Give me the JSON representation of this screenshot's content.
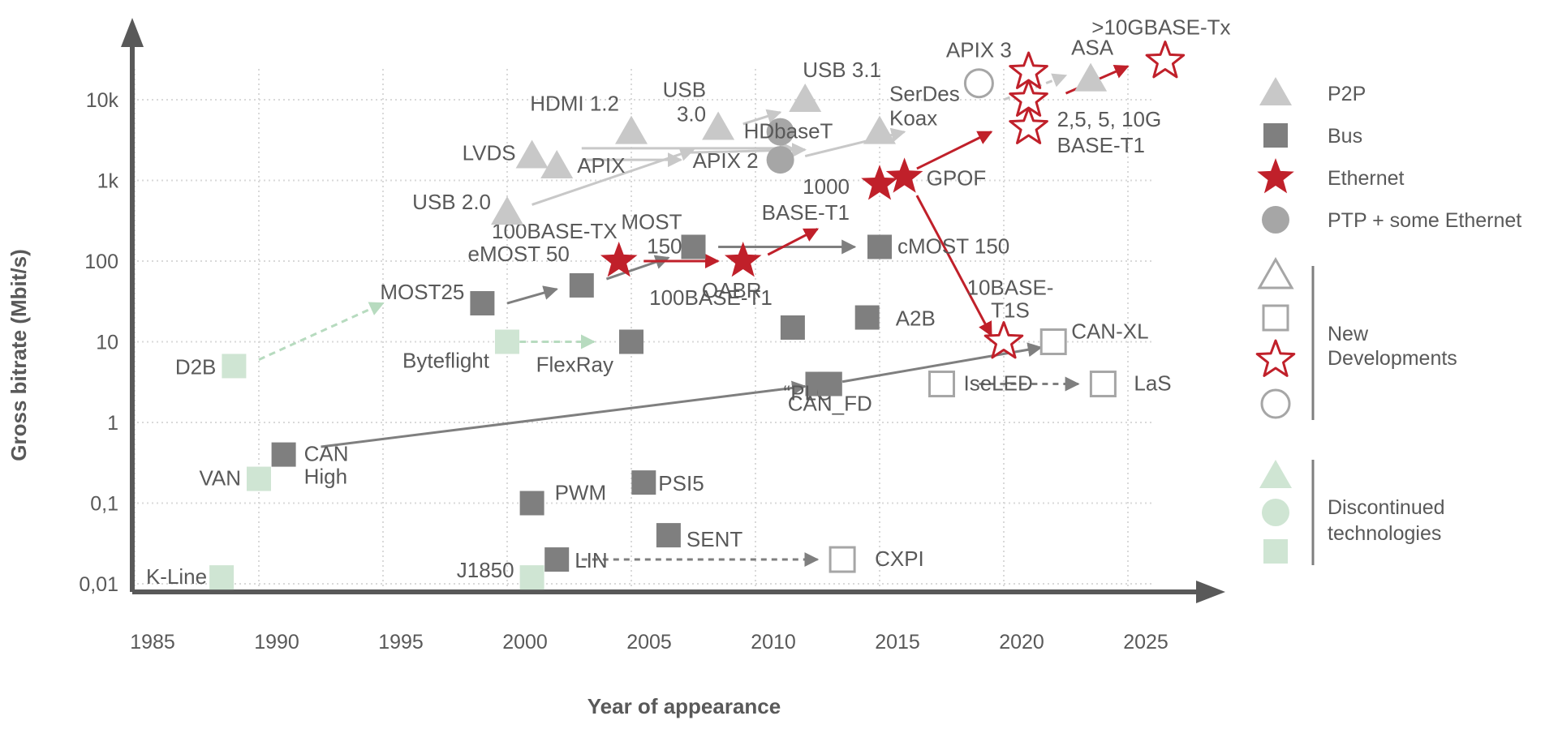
{
  "chart_data": {
    "type": "scatter",
    "xlabel": "Year of appearance",
    "ylabel": "Gross bitrate (Mbit/s)",
    "x_scale": "linear",
    "y_scale": "log",
    "xlim": [
      1985,
      2027
    ],
    "ylim": [
      0.01,
      30000
    ],
    "grid": true,
    "x_ticks": [
      "1985",
      "1990",
      "1995",
      "2000",
      "2005",
      "2010",
      "2015",
      "2020",
      "2025"
    ],
    "y_ticks": [
      {
        "value": 0.01,
        "label": "0,01"
      },
      {
        "value": 0.1,
        "label": "0,1"
      },
      {
        "value": 1,
        "label": "1"
      },
      {
        "value": 10,
        "label": "10"
      },
      {
        "value": 100,
        "label": "100"
      },
      {
        "value": 1000,
        "label": "1k"
      },
      {
        "value": 10000,
        "label": "10k"
      }
    ],
    "legend": {
      "placement": "right",
      "entries": [
        {
          "label": "P2P",
          "marker": "triangle",
          "style": "gray"
        },
        {
          "label": "Bus",
          "marker": "square",
          "style": "darkgray"
        },
        {
          "label": "Ethernet",
          "marker": "star",
          "style": "red"
        },
        {
          "label": "PTP + some Ethernet",
          "marker": "circle",
          "style": "lightgray"
        }
      ],
      "groups": [
        {
          "label": "New Developments",
          "markers": [
            "triangle",
            "square",
            "star",
            "circle"
          ],
          "style": "outline"
        },
        {
          "label": "Discontinued technologies",
          "markers": [
            "triangle",
            "circle",
            "square"
          ],
          "style": "green"
        }
      ]
    },
    "colors": {
      "p2p": "#c8c8c8",
      "bus": "#7f7f7f",
      "ethernet": "#c0202a",
      "ptp": "#a6a6a6",
      "new_outline": "#a6a6a6",
      "discontinued": "#cfe5d3",
      "gray_arrow": "#7f7f7f",
      "light_arrow": "#c8c8c8",
      "red_arrow": "#c0202a",
      "green_arrow": "#b7dbbf",
      "text": "#595959"
    },
    "points": [
      {
        "label": "K-Line",
        "x": 1988.5,
        "y": 0.012,
        "marker": "square",
        "style": "discontinued"
      },
      {
        "label": "VAN",
        "x": 1990,
        "y": 0.2,
        "marker": "square",
        "style": "discontinued"
      },
      {
        "label": "CAN High",
        "x": 1991,
        "y": 0.4,
        "marker": "square",
        "style": "bus"
      },
      {
        "label": "D2B",
        "x": 1989,
        "y": 5,
        "marker": "square",
        "style": "discontinued"
      },
      {
        "label": "MOST25",
        "x": 1999,
        "y": 30,
        "marker": "square",
        "style": "bus"
      },
      {
        "label": "Byteflight",
        "x": 2000,
        "y": 10,
        "marker": "square",
        "style": "discontinued"
      },
      {
        "label": "FlexRay",
        "x": 2005,
        "y": 10,
        "marker": "square",
        "style": "bus"
      },
      {
        "label": "eMOST 50",
        "x": 2003,
        "y": 50,
        "marker": "square",
        "style": "bus"
      },
      {
        "label": "J1850",
        "x": 2001,
        "y": 0.012,
        "marker": "square",
        "style": "discontinued"
      },
      {
        "label": "PWM",
        "x": 2001,
        "y": 0.1,
        "marker": "square",
        "style": "bus"
      },
      {
        "label": "LIN",
        "x": 2002,
        "y": 0.02,
        "marker": "square",
        "style": "bus"
      },
      {
        "label": "PSI5",
        "x": 2005.5,
        "y": 0.18,
        "marker": "square",
        "style": "bus"
      },
      {
        "label": "SENT",
        "x": 2006.5,
        "y": 0.04,
        "marker": "square",
        "style": "bus"
      },
      {
        "label": "CXPI",
        "x": 2013.5,
        "y": 0.02,
        "marker": "square",
        "style": "new"
      },
      {
        "label": "100BASE-TX",
        "x": 2004.5,
        "y": 100,
        "marker": "star",
        "style": "ethernet"
      },
      {
        "label": "MOST 150",
        "x": 2007.5,
        "y": 150,
        "marker": "square",
        "style": "bus"
      },
      {
        "label": "OABR",
        "x": 2009.5,
        "y": 100,
        "marker": "star",
        "style": "ethernet"
      },
      {
        "label": "100BASE-T1",
        "x": 2011.5,
        "y": 15,
        "marker": "square",
        "style": "bus"
      },
      {
        "label": "“PLC”",
        "x": 2012.5,
        "y": 3,
        "marker": "square",
        "style": "bus"
      },
      {
        "label": "A2B",
        "x": 2014.5,
        "y": 20,
        "marker": "square",
        "style": "bus"
      },
      {
        "label": "cMOST 150",
        "x": 2015,
        "y": 150,
        "marker": "square",
        "style": "bus"
      },
      {
        "label": "USB 2.0",
        "x": 2000,
        "y": 400,
        "marker": "triangle",
        "style": "p2p"
      },
      {
        "label": "LVDS",
        "x": 2001,
        "y": 2000,
        "marker": "triangle",
        "style": "p2p"
      },
      {
        "label": "APIX",
        "x": 2002,
        "y": 1500,
        "marker": "triangle",
        "style": "p2p"
      },
      {
        "label": "HDMI 1.2",
        "x": 2005,
        "y": 4000,
        "marker": "triangle",
        "style": "p2p"
      },
      {
        "label": "USB 3.0",
        "x": 2008.5,
        "y": 4500,
        "marker": "triangle",
        "style": "p2p"
      },
      {
        "label": "USB 3.1",
        "x": 2012,
        "y": 10000,
        "marker": "triangle",
        "style": "p2p"
      },
      {
        "label": "HDbaseT",
        "x": 2011,
        "y": 4000,
        "marker": "circle",
        "style": "ptp"
      },
      {
        "label": "APIX 2",
        "x": 2011,
        "y": 1800,
        "marker": "circle",
        "style": "ptp"
      },
      {
        "label": "SerDes Koax",
        "x": 2015,
        "y": 4000,
        "marker": "triangle",
        "style": "p2p"
      },
      {
        "label": "1000 BASE-T1",
        "x": 2015,
        "y": 900,
        "marker": "star",
        "style": "ethernet"
      },
      {
        "label": "GPOF",
        "x": 2016,
        "y": 1100,
        "marker": "star",
        "style": "ethernet"
      },
      {
        "label": "APIX 3",
        "x": 2019,
        "y": 16000,
        "marker": "circle",
        "style": "new"
      },
      {
        "label": "ASA",
        "x": 2023.5,
        "y": 18000,
        "marker": "triangle",
        "style": "p2p"
      },
      {
        "label": "2,5, 5, 10G BASE-T1",
        "x": 2021,
        "y": 10000,
        "marker": "star",
        "style": "new_ethernet"
      },
      {
        "label": ">10GBASE-Tx",
        "x": 2026.5,
        "y": 30000,
        "marker": "star",
        "style": "new_ethernet"
      },
      {
        "label": "10BASE-T1S",
        "x": 2020,
        "y": 10,
        "marker": "star",
        "style": "new_ethernet"
      },
      {
        "label": "CAN-XL",
        "x": 2022,
        "y": 10,
        "marker": "square",
        "style": "new"
      },
      {
        "label": "CAN_FD",
        "x": 2013,
        "y": 3,
        "marker": "square",
        "style": "bus"
      },
      {
        "label": "IseLED",
        "x": 2017.5,
        "y": 3,
        "marker": "square",
        "style": "new"
      },
      {
        "label": "LaS",
        "x": 2024,
        "y": 3,
        "marker": "square",
        "style": "new"
      }
    ],
    "arrows": [
      {
        "from": [
          1990,
          6
        ],
        "to": [
          1995,
          30
        ],
        "style": "green_dashed"
      },
      {
        "from": [
          2000.5,
          10
        ],
        "to": [
          2003.5,
          10
        ],
        "style": "green_dashed"
      },
      {
        "from": [
          1992.5,
          0.5
        ],
        "to": [
          2012,
          2.8
        ],
        "style": "gray"
      },
      {
        "from": [
          2013.5,
          3.2
        ],
        "to": [
          2021.5,
          8.5
        ],
        "style": "gray"
      },
      {
        "from": [
          2000,
          30
        ],
        "to": [
          2002,
          45
        ],
        "style": "gray"
      },
      {
        "from": [
          2004,
          60
        ],
        "to": [
          2006.5,
          110
        ],
        "style": "gray"
      },
      {
        "from": [
          2008.5,
          150
        ],
        "to": [
          2014,
          150
        ],
        "style": "gray"
      },
      {
        "from": [
          2005.5,
          100
        ],
        "to": [
          2008.5,
          100
        ],
        "style": "red"
      },
      {
        "from": [
          2010.5,
          120
        ],
        "to": [
          2012.5,
          250
        ],
        "style": "red"
      },
      {
        "from": [
          2016.5,
          1400
        ],
        "to": [
          2019.5,
          4000
        ],
        "style": "red"
      },
      {
        "from": [
          2016.5,
          650
        ],
        "to": [
          2019.5,
          12
        ],
        "style": "red"
      },
      {
        "from": [
          2022.5,
          12000
        ],
        "to": [
          2025,
          26000
        ],
        "style": "red"
      },
      {
        "from": [
          2003,
          2500
        ],
        "to": [
          2011.5,
          2500
        ],
        "style": "light"
      },
      {
        "from": [
          2003,
          1800
        ],
        "to": [
          2007,
          1800
        ],
        "style": "light"
      },
      {
        "from": [
          2001,
          500
        ],
        "to": [
          2007.5,
          2400
        ],
        "style": "light"
      },
      {
        "from": [
          2007,
          2200
        ],
        "to": [
          2012,
          2400
        ],
        "style": "light"
      },
      {
        "from": [
          2009.5,
          5000
        ],
        "to": [
          2011,
          7000
        ],
        "style": "light"
      },
      {
        "from": [
          2012,
          2000
        ],
        "to": [
          2016,
          4000
        ],
        "style": "light"
      },
      {
        "from": [
          2020,
          10000
        ],
        "to": [
          2022.5,
          20000
        ],
        "style": "light_dashed"
      },
      {
        "from": [
          2003,
          0.02
        ],
        "to": [
          2012.5,
          0.02
        ],
        "style": "gray_dashed"
      },
      {
        "from": [
          2019,
          3
        ],
        "to": [
          2023,
          3
        ],
        "style": "gray_dashed"
      }
    ]
  }
}
